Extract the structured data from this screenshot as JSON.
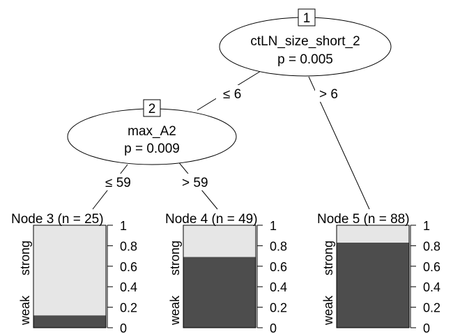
{
  "colors": {
    "strong": "#e6e6e6",
    "weak": "#4d4d4d",
    "stroke": "#000000",
    "background": "#ffffff"
  },
  "nodes": {
    "n1": {
      "id": "1",
      "variable": "ctLN_size_short_2",
      "pvalue": "p = 0.005"
    },
    "n2": {
      "id": "2",
      "variable": "max_A2",
      "pvalue": "p = 0.009"
    }
  },
  "edges": {
    "n1_left": "≤ 6",
    "n1_right": "> 6",
    "n2_left": "≤ 59",
    "n2_right": "> 59"
  },
  "axis": {
    "ticks": [
      "1",
      "0.8",
      "0.6",
      "0.4",
      "0.2",
      "0"
    ]
  },
  "class_labels": {
    "top": "strong",
    "bottom": "weak"
  },
  "chart_data": {
    "type": "bar",
    "categories": [
      "Node 3 (n = 25)",
      "Node 4 (n = 49)",
      "Node 5 (n = 88)"
    ],
    "series": [
      {
        "name": "weak",
        "values": [
          0.12,
          0.69,
          0.83
        ]
      },
      {
        "name": "strong",
        "values": [
          0.88,
          0.31,
          0.17
        ]
      }
    ],
    "ylim": [
      0,
      1
    ]
  }
}
